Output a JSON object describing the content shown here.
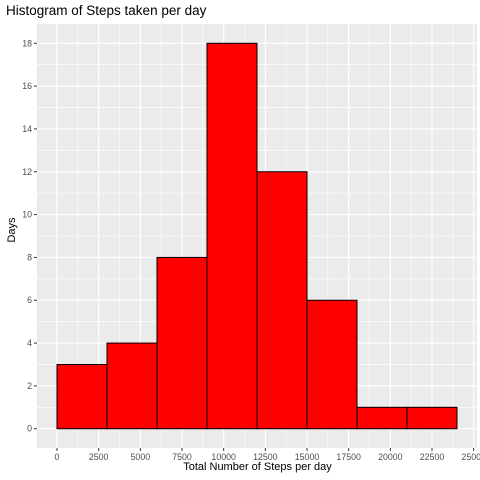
{
  "chart_data": {
    "type": "bar",
    "title": "Histogram of Steps taken per day",
    "xlabel": "Total Number of Steps per day",
    "ylabel": "Days",
    "x_ticks": [
      0,
      2500,
      5000,
      7500,
      10000,
      12500,
      15000,
      17500,
      20000,
      22500,
      25000
    ],
    "y_ticks": [
      0,
      2,
      4,
      6,
      8,
      10,
      12,
      14,
      16,
      18
    ],
    "xlim": [
      -1200,
      25200
    ],
    "ylim": [
      -0.9,
      18.9
    ],
    "bins": [
      {
        "x_start": 0,
        "x_end": 3000,
        "count": 3
      },
      {
        "x_start": 3000,
        "x_end": 6000,
        "count": 4
      },
      {
        "x_start": 6000,
        "x_end": 9000,
        "count": 8
      },
      {
        "x_start": 9000,
        "x_end": 12000,
        "count": 18
      },
      {
        "x_start": 12000,
        "x_end": 15000,
        "count": 12
      },
      {
        "x_start": 15000,
        "x_end": 18000,
        "count": 6
      },
      {
        "x_start": 18000,
        "x_end": 21000,
        "count": 1
      },
      {
        "x_start": 21000,
        "x_end": 24000,
        "count": 1
      }
    ],
    "grid": true,
    "colors": {
      "bar_fill": "#FF0000",
      "bar_stroke": "#000000",
      "panel": "#EBEBEB",
      "grid": "#FFFFFF",
      "tick_text": "#4D4D4D"
    }
  }
}
